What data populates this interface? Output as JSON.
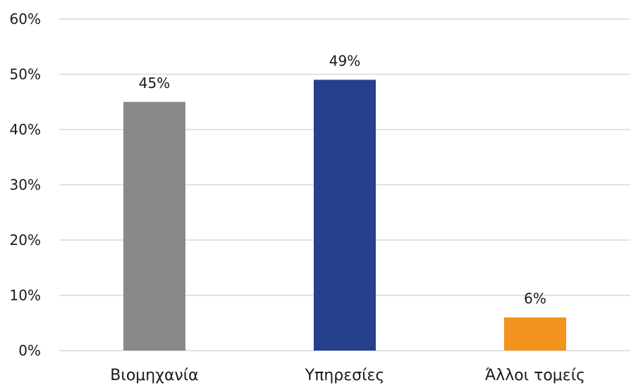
{
  "chart_data": {
    "type": "bar",
    "categories": [
      "Βιομηχανία",
      "Υπηρεσίες",
      "Άλλοι τομείς"
    ],
    "values": [
      45,
      49,
      6
    ],
    "data_labels": [
      "45%",
      "49%",
      "6%"
    ],
    "colors": [
      "#898989",
      "#26408e",
      "#f4921f"
    ],
    "ylim": [
      0,
      60
    ],
    "yticks": [
      0,
      10,
      20,
      30,
      40,
      50,
      60
    ],
    "ytick_labels": [
      "0%",
      "10%",
      "20%",
      "30%",
      "40%",
      "50%",
      "60%"
    ],
    "grid": true,
    "grid_color": "#d9d9d9",
    "title": "",
    "xlabel": "",
    "ylabel": ""
  }
}
